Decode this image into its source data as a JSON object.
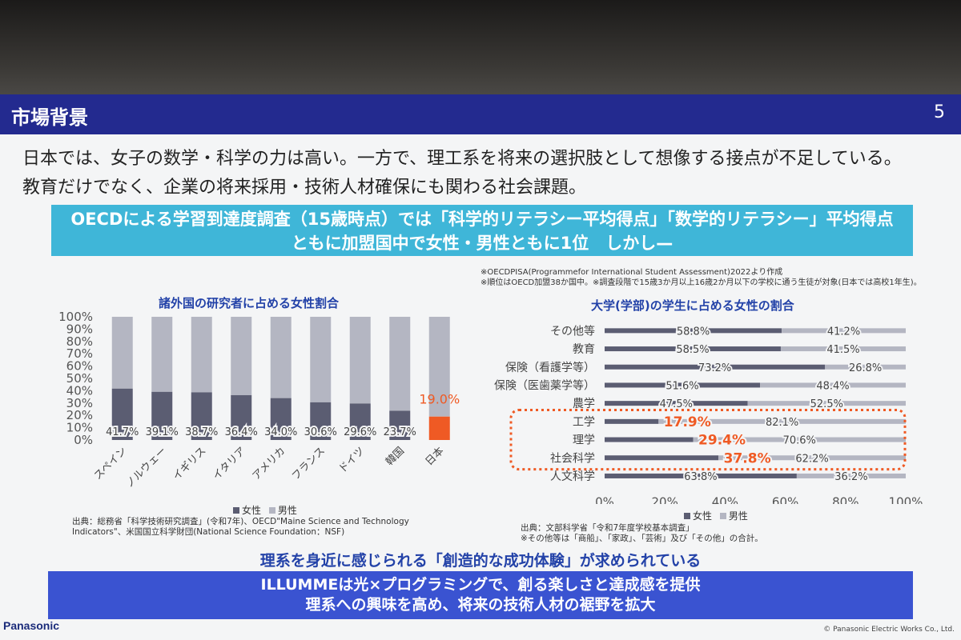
{
  "slide": {
    "title": "市場背景",
    "page_number": "5",
    "headline_1": "日本では、女子の数学・科学の力は高い。一方で、理工系を将来の選択肢として想像する接点が不足している。",
    "headline_2": "教育だけでなく、企業の将来採用・技術人材確保にも関わる社会課題。",
    "banner_line_1": "OECDによる学習到達度調査（15歳時点）では「科学的リテラシー平均得点」「数学的リテラシー」平均得点",
    "banner_line_2": "ともに加盟国中で女性・男性ともに1位　しかし—",
    "note_1": "※OECDPISA(Programmefor International Student Assessment)2022より作成",
    "note_2": "※順位はOECD加盟38か国中。※調査段階で15歳3か月以上16歳2か月以下の学校に通う生徒が対象(日本では高校1年生)。",
    "callout": "理系を身近に感じられる「創造的な成功体験」が求められている",
    "bottom_line_1": "ILLUMMEは光×プログラミングで、創る楽しさと達成感を提供",
    "bottom_line_2": "理系への興味を高め、将来の技術人材の裾野を拡大",
    "logo": "Panasonic",
    "copyright": "© Panasonic Electric Works Co., Ltd."
  },
  "colors": {
    "female": "#5b5d72",
    "male": "#b4b6c2",
    "highlight": "#ef5a24",
    "title_bar": "#232a8f",
    "banner": "#3fb6d8",
    "bottom": "#3a53d1"
  },
  "chart_data": [
    {
      "type": "bar",
      "stacked": true,
      "title": "諸外国の研究者に占める女性割合",
      "categories": [
        "スペイン",
        "ノルウェー",
        "イギリス",
        "イタリア",
        "アメリカ",
        "フランス",
        "ドイツ",
        "韓国",
        "日本"
      ],
      "series": [
        {
          "name": "女性",
          "values": [
            41.7,
            39.1,
            38.7,
            36.4,
            34.0,
            30.6,
            29.6,
            23.7,
            19.0
          ]
        },
        {
          "name": "男性",
          "values": [
            58.3,
            60.9,
            61.3,
            63.6,
            66.0,
            69.4,
            70.4,
            76.3,
            81.0
          ]
        }
      ],
      "data_labels": [
        "41.7%",
        "39.1%",
        "38.7%",
        "36.4%",
        "34.0%",
        "30.6%",
        "29.6%",
        "23.7%",
        "19.0%"
      ],
      "yticks": [
        "0%",
        "10%",
        "20%",
        "30%",
        "40%",
        "50%",
        "60%",
        "70%",
        "80%",
        "90%",
        "100%"
      ],
      "ylim": [
        0,
        100
      ],
      "highlight_category": "日本",
      "source": "出典：総務省「科学技術研究調査」(令和7年)、OECD\"Maine Science and Technology Indicators\"、米国国立科学財団(National Science Foundation：NSF)"
    },
    {
      "type": "bar",
      "orientation": "horizontal",
      "stacked": true,
      "title": "大学(学部)の学生に占める女性の割合",
      "categories": [
        "その他等",
        "教育",
        "保険（看護学等）",
        "保険（医歯薬学等）",
        "農学",
        "工学",
        "理学",
        "社会科学",
        "人文科学"
      ],
      "series": [
        {
          "name": "女性",
          "values": [
            58.8,
            58.5,
            73.2,
            51.6,
            47.5,
            17.9,
            29.4,
            37.8,
            63.8
          ]
        },
        {
          "name": "男性",
          "values": [
            41.2,
            41.5,
            26.8,
            48.4,
            52.5,
            82.1,
            70.6,
            62.2,
            36.2
          ]
        }
      ],
      "female_labels": [
        "58.8%",
        "58.5%",
        "73.2%",
        "51.6%",
        "47.5%",
        "17.9%",
        "29.4%",
        "37.8%",
        "63.8%"
      ],
      "male_labels": [
        "41.2%",
        "41.5%",
        "26.8%",
        "48.4%",
        "52.5%",
        "82.1%",
        "70.6%",
        "62.2%",
        "36.2%"
      ],
      "xticks": [
        "0%",
        "20%",
        "40%",
        "60%",
        "80%",
        "100%"
      ],
      "xlim": [
        0,
        100
      ],
      "highlight_categories": [
        "工学",
        "理学",
        "社会科学"
      ],
      "source": "出典：文部科学省「令和7年度学校基本調査」\n※その他等は「商船」、「家政」、「芸術」及び「その他」の合計。"
    }
  ],
  "legend": {
    "female": "女性",
    "male": "男性"
  }
}
